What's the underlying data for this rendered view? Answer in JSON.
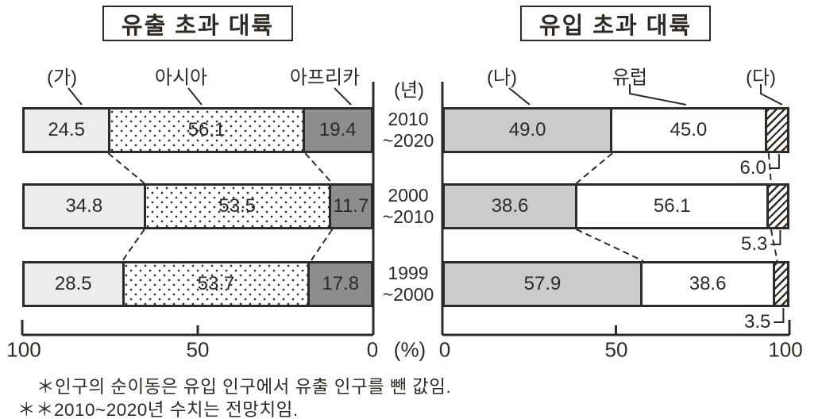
{
  "titles": {
    "left": "유출 초과 대륙",
    "right": "유입 초과 대륙"
  },
  "axis": {
    "year_label": "(년)",
    "percent_label": "(%)",
    "left_ticks": [
      "100",
      "50",
      "0"
    ],
    "right_ticks": [
      "0",
      "50",
      "100"
    ]
  },
  "rows": [
    {
      "year_line1": "2010",
      "year_line2": "~2020"
    },
    {
      "year_line1": "2000",
      "year_line2": "~2010"
    },
    {
      "year_line1": "1999",
      "year_line2": "~2000"
    }
  ],
  "footnotes": [
    "＊인구의 순이동은 유입 인구에서 유출 인구를 뺀 값임.",
    "＊＊2010~2020년 수치는 전망치임."
  ],
  "colors": {
    "line": "#2f2a26",
    "light_gray": "#ececec",
    "dark_gray": "#8d8d8d",
    "mid_gray": "#cbcbcb",
    "white": "#ffffff"
  },
  "chart_data": [
    {
      "type": "bar",
      "variant": "horizontal-stacked",
      "title": "유출 초과 대륙",
      "categories": [
        "2010~2020",
        "2000~2010",
        "1999~2000"
      ],
      "series": [
        {
          "name": "(가)",
          "style": "light-gray",
          "values": [
            24.5,
            34.8,
            28.5
          ]
        },
        {
          "name": "아시아",
          "style": "dots",
          "values": [
            56.1,
            53.5,
            53.7
          ]
        },
        {
          "name": "아프리카",
          "style": "dark-gray",
          "values": [
            19.4,
            11.7,
            17.8
          ]
        }
      ],
      "xlabel": "(%)",
      "xlim": [
        100,
        0
      ],
      "xticks": [
        100,
        50,
        0
      ],
      "axis_reversed": true,
      "legend_position": "above-with-leader-lines",
      "grid": false
    },
    {
      "type": "bar",
      "variant": "horizontal-stacked",
      "title": "유입 초과 대륙",
      "categories": [
        "2010~2020",
        "2000~2010",
        "1999~2000"
      ],
      "series": [
        {
          "name": "(나)",
          "style": "mid-gray",
          "values": [
            49.0,
            38.6,
            57.9
          ]
        },
        {
          "name": "유럽",
          "style": "white",
          "values": [
            45.0,
            56.1,
            38.6
          ]
        },
        {
          "name": "(다)",
          "style": "hatch",
          "values": [
            6.0,
            5.3,
            3.5
          ],
          "labels_outside": true
        }
      ],
      "xlabel": "(%)",
      "xlim": [
        0,
        100
      ],
      "xticks": [
        0,
        50,
        100
      ],
      "axis_reversed": false,
      "legend_position": "above-with-leader-lines",
      "grid": false
    }
  ]
}
